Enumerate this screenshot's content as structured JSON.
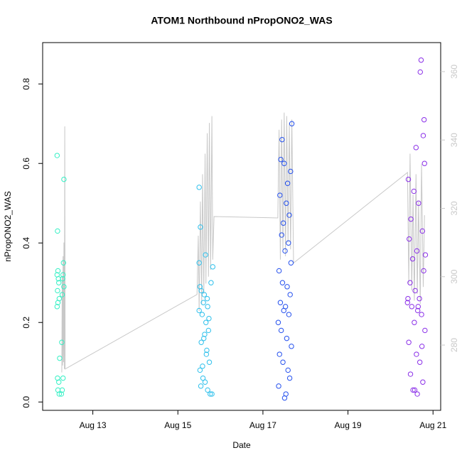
{
  "chart_data": {
    "type": "scatter",
    "title": "ATOM1 Northbound nPropONO2_WAS",
    "x_label": "Date",
    "y_label": "nPropONO2_WAS",
    "xlim": [
      11.82,
      21.18
    ],
    "xticks": [
      {
        "value": 13,
        "label": "Aug 13"
      },
      {
        "value": 15,
        "label": "Aug 15"
      },
      {
        "value": 17,
        "label": "Aug 17"
      },
      {
        "value": 19,
        "label": "Aug 19"
      },
      {
        "value": 21,
        "label": "Aug 21"
      }
    ],
    "ylim": [
      -0.021,
      0.904
    ],
    "yticks": [
      {
        "value": 0,
        "label": "0.0"
      },
      0.2,
      0.4,
      0.6,
      0.8
    ],
    "y2lim": [
      260.9,
      368.5
    ],
    "y2ticks": [
      280,
      300,
      320,
      340,
      360
    ],
    "series": [
      {
        "mode": "points",
        "color": "#33f0c4",
        "x": [
          12.16,
          12.17,
          12.18,
          12.16,
          12.19,
          12.2,
          12.17,
          12.21,
          12.18,
          12.16,
          12.17,
          12.2,
          12.18,
          12.21,
          12.32,
          12.31,
          12.3,
          12.29,
          12.32,
          12.28,
          12.27,
          12.22,
          12.3,
          12.26,
          12.28
        ],
        "values": [
          0.62,
          0.43,
          0.33,
          0.32,
          0.31,
          0.3,
          0.28,
          0.26,
          0.25,
          0.24,
          0.06,
          0.05,
          0.03,
          0.02,
          0.56,
          0.35,
          0.32,
          0.31,
          0.29,
          0.27,
          0.15,
          0.11,
          0.06,
          0.02,
          0.03
        ]
      },
      {
        "mode": "points",
        "color": "#2ec0ec",
        "x": [
          15.5,
          15.53,
          15.5,
          15.65,
          15.52,
          15.55,
          15.62,
          15.6,
          15.7,
          15.5,
          15.57,
          15.66,
          15.72,
          15.61,
          15.55,
          15.68,
          15.74,
          15.52,
          15.59,
          15.64,
          15.7,
          15.76,
          15.8,
          15.82,
          15.78,
          15.69,
          15.73,
          15.63,
          15.67,
          15.58,
          15.54
        ],
        "values": [
          0.54,
          0.44,
          0.35,
          0.37,
          0.29,
          0.28,
          0.27,
          0.25,
          0.24,
          0.23,
          0.22,
          0.2,
          0.18,
          0.16,
          0.15,
          0.13,
          0.1,
          0.08,
          0.06,
          0.05,
          0.03,
          0.02,
          0.02,
          0.34,
          0.3,
          0.26,
          0.21,
          0.17,
          0.12,
          0.09,
          0.04
        ]
      },
      {
        "mode": "points",
        "color": "#2450ee",
        "x": [
          17.68,
          17.45,
          17.42,
          17.5,
          17.65,
          17.58,
          17.4,
          17.55,
          17.62,
          17.48,
          17.44,
          17.6,
          17.52,
          17.66,
          17.38,
          17.46,
          17.57,
          17.64,
          17.41,
          17.53,
          17.49,
          17.61,
          17.36,
          17.43,
          17.56,
          17.67,
          17.39,
          17.47,
          17.59,
          17.63,
          17.37,
          17.54,
          17.51
        ],
        "values": [
          0.7,
          0.66,
          0.61,
          0.6,
          0.58,
          0.55,
          0.52,
          0.5,
          0.47,
          0.45,
          0.42,
          0.4,
          0.38,
          0.35,
          0.33,
          0.3,
          0.29,
          0.27,
          0.25,
          0.24,
          0.23,
          0.22,
          0.2,
          0.18,
          0.16,
          0.14,
          0.12,
          0.1,
          0.08,
          0.06,
          0.04,
          0.02,
          0.01
        ]
      },
      {
        "mode": "points",
        "color": "#8a2ee8",
        "x": [
          20.72,
          20.7,
          20.77,
          20.6,
          20.8,
          20.42,
          20.55,
          20.66,
          20.48,
          20.75,
          20.44,
          20.62,
          20.52,
          20.78,
          20.46,
          20.58,
          20.68,
          20.4,
          20.5,
          20.64,
          20.73,
          20.56,
          20.81,
          20.43,
          20.61,
          20.69,
          20.47,
          20.76,
          20.53,
          20.63,
          20.79,
          20.82,
          20.41,
          20.65,
          20.74,
          20.57
        ],
        "values": [
          0.86,
          0.83,
          0.67,
          0.64,
          0.6,
          0.56,
          0.53,
          0.5,
          0.46,
          0.43,
          0.41,
          0.38,
          0.36,
          0.33,
          0.3,
          0.28,
          0.26,
          0.25,
          0.24,
          0.23,
          0.22,
          0.2,
          0.18,
          0.15,
          0.12,
          0.1,
          0.07,
          0.05,
          0.03,
          0.02,
          0.71,
          0.37,
          0.26,
          0.24,
          0.14,
          0.03
        ]
      },
      {
        "mode": "line",
        "axis": "y2",
        "color": "#c8c8c8",
        "x": [
          12.27,
          12.28,
          12.29,
          12.3,
          12.31,
          12.32,
          12.33,
          12.34,
          12.35,
          15.45,
          15.48,
          15.5,
          15.53,
          15.56,
          15.58,
          15.61,
          15.64,
          15.66,
          15.69,
          15.72,
          15.74,
          15.77,
          15.8,
          15.82,
          15.85,
          17.35,
          17.38,
          17.41,
          17.44,
          17.47,
          17.5,
          17.53,
          17.56,
          17.59,
          17.62,
          17.65,
          17.68,
          17.72,
          20.4,
          20.43,
          20.46,
          20.5,
          20.53,
          20.56,
          20.6,
          20.63,
          20.66,
          20.7,
          20.73,
          20.77,
          20.8
        ],
        "values": [
          272,
          300,
          274,
          306,
          275,
          310,
          273,
          344,
          273,
          294.8,
          312,
          290,
          322,
          292,
          330,
          295,
          336,
          298,
          342,
          300,
          345,
          302,
          347,
          305,
          317.6,
          317.2,
          343,
          305,
          346,
          308,
          348,
          306,
          347,
          310,
          345,
          308,
          346,
          304,
          330.5,
          298,
          336,
          296,
          324,
          293,
          330,
          295,
          322,
          292,
          333,
          297,
          318
        ]
      }
    ]
  }
}
